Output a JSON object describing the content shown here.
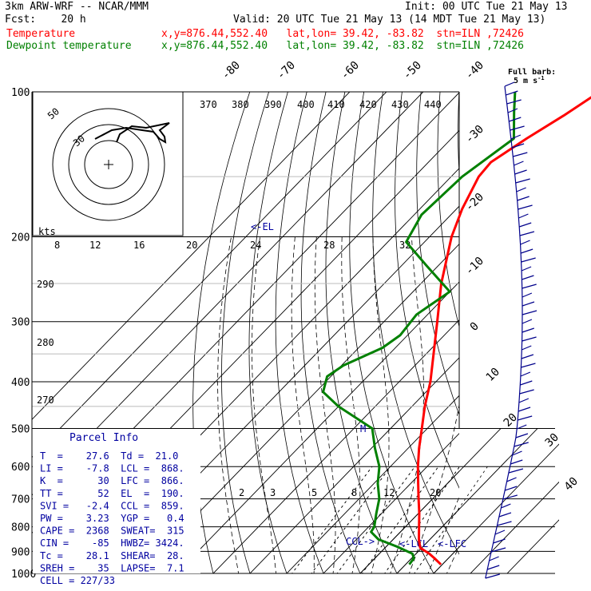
{
  "header": {
    "model": "3km ARW-WRF -- NCAR/MMM",
    "init": "Init: 00 UTC Tue 21 May 13",
    "fcst": "Fcst:    20 h",
    "valid": "Valid: 20 UTC Tue 21 May 13 (14 MDT Tue 21 May 13)",
    "temp_label": "Temperature",
    "temp_loc": "x,y=876.44,552.40   lat,lon= 39.42, -83.82  stn=ILN ,72426",
    "dew_label": "Dewpoint temperature",
    "dew_loc": "x,y=876.44,552.40   lat,lon= 39.42, -83.82  stn=ILN ,72426"
  },
  "colors": {
    "temperature": "#ff0000",
    "dewpoint": "#008000",
    "info": "#0000a0",
    "barb": "#00008b"
  },
  "chart_data": {
    "type": "line",
    "chart_kind": "skew-T log-P sounding",
    "y_scale": "log",
    "ylim": [
      1000,
      100
    ],
    "pressure_ticks": [
      100,
      200,
      300,
      400,
      500,
      600,
      700,
      800,
      900,
      1000
    ],
    "isotherm_labels": [
      "-80",
      "-70",
      "-60",
      "-50",
      "-40",
      "-30",
      "-20",
      "-10",
      "0",
      "10",
      "20",
      "30",
      "40"
    ],
    "theta_e_labels": [
      "370",
      "380",
      "390",
      "400",
      "410",
      "420",
      "430",
      "440"
    ],
    "theta_labels": [
      "290",
      "280",
      "270"
    ],
    "mixing_ratio_labels": [
      "2",
      "3",
      "5",
      "8",
      "12",
      "20"
    ],
    "series": [
      {
        "name": "Temperature",
        "color": "#ff0000",
        "points": [
          [
            958,
            29.6
          ],
          [
            930,
            26.2
          ],
          [
            910,
            23.6
          ],
          [
            885,
            19.6
          ],
          [
            850,
            17.0
          ],
          [
            800,
            13.7
          ],
          [
            750,
            10.2
          ],
          [
            700,
            6.2
          ],
          [
            650,
            2.0
          ],
          [
            600,
            -2.5
          ],
          [
            550,
            -7.0
          ],
          [
            500,
            -11.5
          ],
          [
            450,
            -16.5
          ],
          [
            400,
            -21.5
          ],
          [
            350,
            -28.0
          ],
          [
            300,
            -35.5
          ],
          [
            250,
            -44.5
          ],
          [
            200,
            -54.0
          ],
          [
            175,
            -58.5
          ],
          [
            150,
            -62.5
          ],
          [
            140,
            -63.0
          ],
          [
            125,
            -59.5
          ],
          [
            112,
            -55.5
          ],
          [
            100,
            -52.0
          ]
        ]
      },
      {
        "name": "Dewpoint temperature",
        "color": "#008000",
        "points": [
          [
            958,
            21.0
          ],
          [
            930,
            20.6
          ],
          [
            910,
            19.0
          ],
          [
            880,
            13.0
          ],
          [
            850,
            6.0
          ],
          [
            820,
            2.0
          ],
          [
            800,
            1.5
          ],
          [
            750,
            -1.5
          ],
          [
            700,
            -4.5
          ],
          [
            650,
            -9.0
          ],
          [
            600,
            -13.0
          ],
          [
            550,
            -19.0
          ],
          [
            500,
            -25.0
          ],
          [
            450,
            -40.0
          ],
          [
            420,
            -48.0
          ],
          [
            390,
            -51.0
          ],
          [
            370,
            -49.5
          ],
          [
            340,
            -43.5
          ],
          [
            320,
            -42.0
          ],
          [
            290,
            -43.0
          ],
          [
            260,
            -40.0
          ],
          [
            230,
            -53.0
          ],
          [
            205,
            -65.0
          ],
          [
            180,
            -68.0
          ],
          [
            150,
            -67.0
          ],
          [
            125,
            -63.0
          ],
          [
            110,
            -70.0
          ],
          [
            100,
            -75.0
          ]
        ]
      }
    ],
    "markers": [
      "<-EL",
      "<-LCL",
      "<-LFC",
      "CCL->"
    ],
    "hodograph": {
      "speed_labels": [
        "8",
        "12",
        "16",
        "20",
        "24",
        "28",
        "32"
      ],
      "units": "kts",
      "ring_labels": [
        "50",
        "30"
      ]
    },
    "barb_title": "Full barb:",
    "barb_units": "5 m s",
    "barb_units_sup": "-1"
  },
  "parcel_info": {
    "title": "Parcel Info",
    "rows": [
      "T  =    27.6  Td =  21.0",
      "LI =    -7.8  LCL =  868.",
      "K  =      30  LFC =  866.",
      "TT =      52  EL  =  190.",
      "SVI =   -2.4  CCL =  859.",
      "PW =    3.23  YGP =   0.4",
      "CAPE =  2368  SWEAT=  315",
      "CIN =    -85  HWBZ= 3424.",
      "Tc =    28.1  SHEAR=  28.",
      "SREH =    35  LAPSE=  7.1",
      "CELL = 227/33"
    ]
  }
}
